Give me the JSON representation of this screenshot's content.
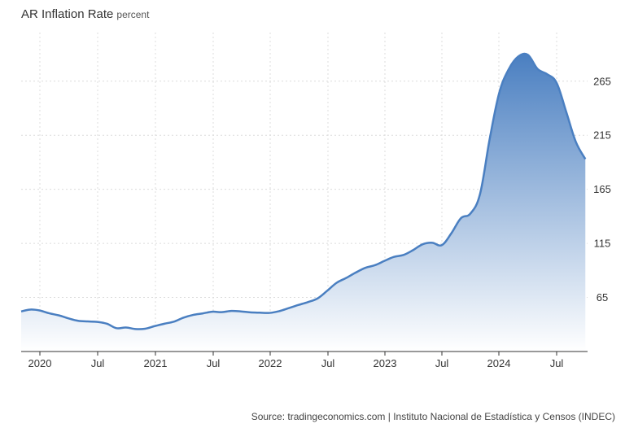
{
  "header": {
    "title": "AR Inflation Rate",
    "unit": "percent"
  },
  "source": "Source: tradingeconomics.com | Instituto Nacional de Estadística y Censos (INDEC)",
  "chart_data": {
    "type": "area",
    "title": "AR Inflation Rate",
    "subtitle": "percent",
    "xlabel": "",
    "ylabel": "",
    "x": [
      "2019-11",
      "2019-12",
      "2020-01",
      "2020-02",
      "2020-03",
      "2020-04",
      "2020-05",
      "2020-06",
      "2020-07",
      "2020-08",
      "2020-09",
      "2020-10",
      "2020-11",
      "2020-12",
      "2021-01",
      "2021-02",
      "2021-03",
      "2021-04",
      "2021-05",
      "2021-06",
      "2021-07",
      "2021-08",
      "2021-09",
      "2021-10",
      "2021-11",
      "2021-12",
      "2022-01",
      "2022-02",
      "2022-03",
      "2022-04",
      "2022-05",
      "2022-06",
      "2022-07",
      "2022-08",
      "2022-09",
      "2022-10",
      "2022-11",
      "2022-12",
      "2023-01",
      "2023-02",
      "2023-03",
      "2023-04",
      "2023-05",
      "2023-06",
      "2023-07",
      "2023-08",
      "2023-09",
      "2023-10",
      "2023-11",
      "2023-12",
      "2024-01",
      "2024-02",
      "2024-03",
      "2024-04",
      "2024-05",
      "2024-06",
      "2024-07",
      "2024-08",
      "2024-09",
      "2024-10"
    ],
    "series": [
      {
        "name": "",
        "values": [
          52.1,
          53.8,
          52.9,
          50.3,
          48.4,
          45.6,
          43.4,
          42.8,
          42.4,
          40.7,
          36.6,
          37.2,
          35.8,
          36.1,
          38.5,
          40.7,
          42.6,
          46.3,
          48.8,
          50.2,
          51.8,
          51.4,
          52.5,
          52.1,
          51.2,
          50.9,
          50.7,
          52.3,
          55.1,
          58.0,
          60.7,
          64.0,
          71.0,
          78.5,
          83.0,
          88.0,
          92.4,
          94.8,
          98.8,
          102.5,
          104.3,
          108.8,
          114.2,
          115.6,
          113.4,
          124.4,
          138.3,
          142.7,
          160.9,
          211.4,
          254.2,
          276.2,
          287.9,
          289.4,
          276.4,
          271.5,
          263.4,
          236.7,
          209.0,
          193.0
        ]
      }
    ],
    "x_ticks": [
      {
        "label": "2020",
        "at": "2020-01"
      },
      {
        "label": "Jul",
        "at": "2020-07"
      },
      {
        "label": "2021",
        "at": "2021-01"
      },
      {
        "label": "Jul",
        "at": "2021-07"
      },
      {
        "label": "2022",
        "at": "2022-01"
      },
      {
        "label": "Jul",
        "at": "2022-07"
      },
      {
        "label": "2023",
        "at": "2023-01"
      },
      {
        "label": "Jul",
        "at": "2023-07"
      },
      {
        "label": "2024",
        "at": "2024-01"
      },
      {
        "label": "Jul",
        "at": "2024-07"
      }
    ],
    "y_ticks": [
      65,
      115,
      165,
      215,
      265
    ],
    "ylim": [
      15,
      310
    ],
    "y_axis_side": "right",
    "grid": true,
    "legend": "none",
    "colors": {
      "line": "#4a7fc1",
      "fill_top": "#4a7fc1",
      "fill_bottom": "#ffffff",
      "grid": "#dcdcdc",
      "axis": "#333333"
    }
  }
}
